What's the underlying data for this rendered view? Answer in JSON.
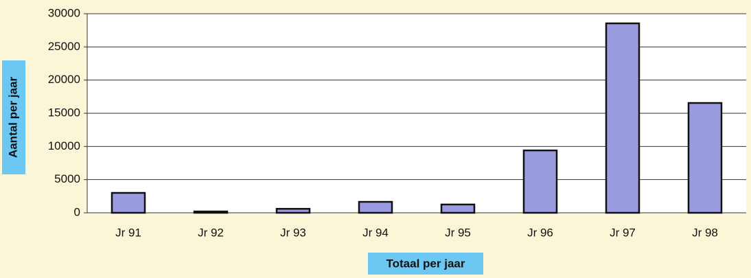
{
  "chart_data": {
    "type": "bar",
    "xlabel": "Totaal per jaar",
    "ylabel": "Aantal per jaar",
    "categories": [
      "Jr 91",
      "Jr 92",
      "Jr 93",
      "Jr 94",
      "Jr 95",
      "Jr 96",
      "Jr 97",
      "Jr 98"
    ],
    "values": [
      3000,
      200,
      600,
      1650,
      1250,
      9400,
      28550,
      16550
    ],
    "color": "#9b9be0",
    "ylim": [
      0,
      30000
    ],
    "yticks": [
      0,
      5000,
      10000,
      15000,
      20000,
      25000,
      30000
    ],
    "grid": true
  }
}
